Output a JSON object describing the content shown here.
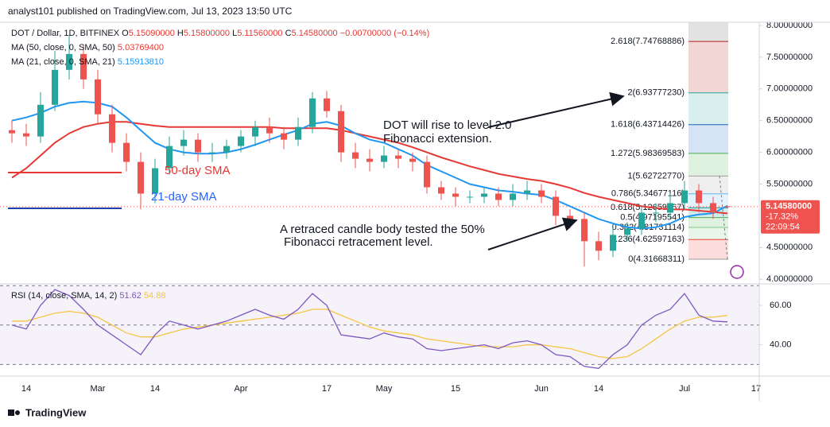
{
  "header": "analyst101 published on TradingView.com, Jul 13, 2023 13:50 UTC",
  "footer": "TradingView",
  "chart_data": [
    {
      "type": "candlestick",
      "title": "DOT / Dollar, 1D, BITFINEX",
      "ohlc_legend": [
        "O",
        "5.15090000",
        "H",
        "5.15800000",
        "L",
        "5.11560000",
        "C",
        "5.14580000",
        "−0.00700000 (−0.14%)"
      ],
      "categories": [
        null,
        "14",
        null,
        null,
        null,
        null,
        "Mar",
        null,
        null,
        null,
        "14",
        null,
        null,
        null,
        null,
        null,
        "Apr",
        null,
        null,
        null,
        null,
        null,
        "17",
        null,
        null,
        null,
        "May",
        null,
        null,
        null,
        null,
        "15",
        null,
        null,
        null,
        null,
        null,
        "Jun",
        null,
        null,
        null,
        "14",
        null,
        null,
        null,
        null,
        null,
        "Jul",
        null,
        null,
        null,
        null,
        "17"
      ],
      "open": [
        6.35,
        6.3,
        6.25,
        6.75,
        7.3,
        7.55,
        7.15,
        6.6,
        6.15,
        5.85,
        5.35,
        5.75,
        6.1,
        6.2,
        6.0,
        6.0,
        6.1,
        6.25,
        6.4,
        6.3,
        6.2,
        6.4,
        6.85,
        6.65,
        6.0,
        5.9,
        5.85,
        5.95,
        5.9,
        5.85,
        5.45,
        5.35,
        5.3,
        5.3,
        5.35,
        5.25,
        5.35,
        5.4,
        5.3,
        5.0,
        4.95,
        4.6,
        4.45,
        4.7,
        4.8,
        5.05,
        5.05,
        5.2,
        5.4,
        5.2,
        5.1509,
        null,
        null
      ],
      "high": [
        6.5,
        6.45,
        6.95,
        7.6,
        7.85,
        7.7,
        7.3,
        6.75,
        6.3,
        6.0,
        5.9,
        6.25,
        6.35,
        6.3,
        6.15,
        6.2,
        6.35,
        6.5,
        6.55,
        6.4,
        6.55,
        6.95,
        6.97,
        6.75,
        6.15,
        6.05,
        6.1,
        6.05,
        6.0,
        5.95,
        5.55,
        5.45,
        5.4,
        5.45,
        5.45,
        5.5,
        5.55,
        5.5,
        5.4,
        5.1,
        5.05,
        4.75,
        4.85,
        4.9,
        5.15,
        5.2,
        5.35,
        5.55,
        5.5,
        5.3,
        5.158,
        null,
        null
      ],
      "low": [
        6.15,
        6.1,
        6.15,
        6.65,
        7.15,
        7.0,
        6.45,
        6.0,
        5.7,
        5.1,
        5.2,
        5.65,
        5.95,
        5.85,
        5.85,
        5.9,
        6.0,
        6.1,
        6.15,
        6.05,
        6.1,
        6.3,
        6.55,
        5.85,
        5.75,
        5.7,
        5.75,
        5.75,
        5.7,
        5.35,
        5.25,
        5.15,
        5.2,
        5.2,
        5.15,
        5.15,
        5.25,
        5.2,
        4.85,
        4.8,
        4.2,
        4.3,
        4.35,
        4.6,
        4.7,
        4.9,
        4.95,
        5.1,
        5.05,
        4.95,
        5.1156,
        null,
        null
      ],
      "close": [
        6.3,
        6.25,
        6.75,
        7.3,
        7.55,
        7.15,
        6.6,
        6.15,
        5.85,
        5.35,
        5.75,
        6.1,
        6.2,
        6.0,
        6.0,
        6.1,
        6.25,
        6.4,
        6.3,
        6.2,
        6.4,
        6.85,
        6.65,
        6.0,
        5.9,
        5.85,
        5.95,
        5.9,
        5.85,
        5.45,
        5.35,
        5.3,
        5.3,
        5.35,
        5.25,
        5.35,
        5.4,
        5.3,
        5.0,
        4.95,
        4.6,
        4.45,
        4.7,
        4.8,
        5.05,
        5.05,
        5.2,
        5.4,
        5.2,
        5.05,
        5.1458,
        null,
        null
      ],
      "up_color": "#26a69a",
      "down_color": "#ef5350",
      "series": [
        {
          "name": "MA (50, close, 0, SMA, 50)",
          "legend_value": "5.03769400",
          "color": "#e53935",
          "values": [
            5.6,
            5.75,
            5.95,
            6.15,
            6.3,
            6.4,
            6.45,
            6.48,
            6.48,
            6.45,
            6.42,
            6.4,
            6.4,
            6.4,
            6.4,
            6.4,
            6.4,
            6.4,
            6.4,
            6.38,
            6.38,
            6.38,
            6.38,
            6.35,
            6.3,
            6.25,
            6.2,
            6.15,
            6.08,
            6.0,
            5.92,
            5.85,
            5.78,
            5.72,
            5.66,
            5.62,
            5.58,
            5.55,
            5.5,
            5.44,
            5.36,
            5.3,
            5.25,
            5.2,
            5.15,
            5.12,
            5.1,
            5.1,
            5.08,
            5.06,
            5.0377,
            null,
            null
          ]
        },
        {
          "name": "MA (21, close, 0, SMA, 21)",
          "legend_value": "5.15913810",
          "color": "#2196f3",
          "values": [
            6.5,
            6.55,
            6.62,
            6.72,
            6.78,
            6.8,
            6.78,
            6.72,
            6.55,
            6.35,
            6.15,
            6.05,
            6.0,
            5.98,
            5.98,
            6.0,
            6.05,
            6.12,
            6.2,
            6.28,
            6.35,
            6.45,
            6.48,
            6.42,
            6.3,
            6.2,
            6.15,
            6.05,
            5.95,
            5.8,
            5.7,
            5.6,
            5.5,
            5.45,
            5.4,
            5.38,
            5.35,
            5.33,
            5.25,
            5.15,
            5.05,
            4.95,
            4.88,
            4.82,
            4.8,
            4.82,
            4.88,
            4.98,
            5.02,
            5.04,
            5.1591,
            null,
            null
          ]
        }
      ],
      "ylim": [
        3.94,
        8.05
      ],
      "yticks": [
        {
          "value": 8.0,
          "label": "8.00000000"
        },
        {
          "value": 7.5,
          "label": "7.50000000"
        },
        {
          "value": 7.0,
          "label": "7.00000000"
        },
        {
          "value": 6.5,
          "label": "6.50000000"
        },
        {
          "value": 6.0,
          "label": "6.00000000"
        },
        {
          "value": 5.5,
          "label": "5.50000000"
        },
        {
          "value": 4.5,
          "label": "4.50000000"
        },
        {
          "value": 4.0,
          "label": "4.00000000"
        }
      ],
      "last_price": {
        "value": 5.1458,
        "label": "5.14580000"
      },
      "change_label": "-17.32%",
      "countdown": "22:09:54",
      "fibonacci": [
        {
          "value": 7.74768886,
          "label": "2.618(7.74768886)",
          "color": "#b71c1c"
        },
        {
          "value": 6.9377723,
          "label": "2(6.93777230)",
          "color": "#26a69a"
        },
        {
          "value": 6.43714426,
          "label": "1.618(6.43714426)",
          "color": "#1565c0"
        },
        {
          "value": 5.98369583,
          "label": "1.272(5.98369583)",
          "color": "#4caf50"
        },
        {
          "value": 5.6272277,
          "label": "1(5.62722770)",
          "color": "#9e9e9e"
        },
        {
          "value": 5.34677116,
          "label": "0.786(5.34677116)",
          "color": "#64b5f6"
        },
        {
          "value": 5.12659967,
          "label": "0.618(5.12659967)",
          "color": "#009688"
        },
        {
          "value": 4.97195541,
          "label": "0.5(4.97195541)",
          "color": "#4caf50"
        },
        {
          "value": 4.81731114,
          "label": "0.382(4.81731114)",
          "color": "#81c784"
        },
        {
          "value": 4.62597163,
          "label": "0.236(4.62597163)",
          "color": "#f44336"
        },
        {
          "value": 4.31668311,
          "label": "0(4.31668311)",
          "color": "#9e9e9e"
        }
      ],
      "annotations": [
        "DOT will rise to level 2.0",
        "Fibonacci extension.",
        "A retraced candle body tested the 50%",
        "Fibonacci retracement level.",
        "50-day SMA",
        "21-day SMA"
      ]
    },
    {
      "type": "line",
      "title": "RSI (14, close, SMA, 14, 2)",
      "series": [
        {
          "legend_value": "51.62",
          "color": "#7e57c2",
          "values": [
            50,
            48,
            60,
            68,
            65,
            58,
            50,
            45,
            40,
            35,
            45,
            52,
            50,
            48,
            50,
            52,
            55,
            58,
            55,
            53,
            58,
            66,
            60,
            45,
            44,
            43,
            46,
            44,
            43,
            38,
            37,
            38,
            39,
            40,
            38,
            41,
            42,
            40,
            35,
            34,
            29,
            28,
            35,
            40,
            50,
            55,
            58,
            66,
            55,
            52,
            51.62,
            null,
            null
          ]
        },
        {
          "legend_value": "54.88",
          "color": "#f5c542",
          "values": [
            52,
            52,
            54,
            56,
            57,
            56,
            54,
            50,
            46,
            44,
            44,
            46,
            48,
            49,
            50,
            51,
            52,
            53,
            54,
            55,
            56,
            58,
            58,
            55,
            52,
            49,
            47,
            46,
            45,
            43,
            42,
            41,
            40,
            39,
            39,
            39,
            40,
            40,
            39,
            38,
            36,
            34,
            33,
            34,
            38,
            43,
            48,
            52,
            54,
            54,
            54.88,
            null,
            null
          ]
        }
      ],
      "ylim": [
        24.5,
        70.5
      ],
      "yticks": [
        {
          "value": 60,
          "label": "60.00"
        },
        {
          "value": 40,
          "label": "40.00"
        }
      ],
      "band": [
        30,
        70
      ],
      "midline": 50
    }
  ]
}
